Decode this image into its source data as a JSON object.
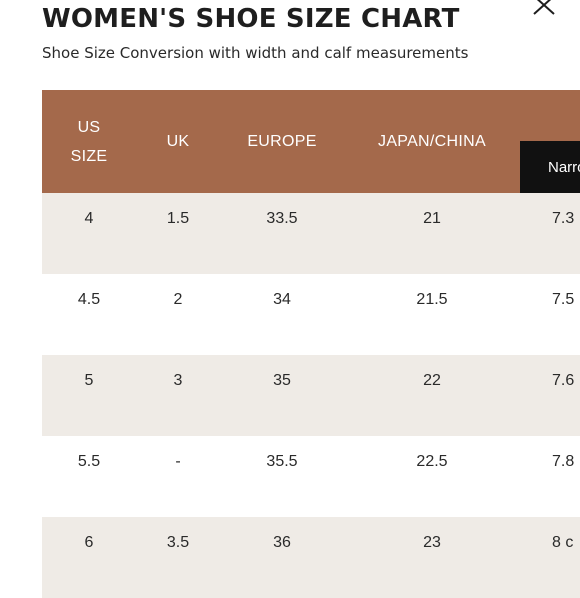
{
  "header": {
    "title": "WOMEN'S SHOE SIZE CHART",
    "subtitle": "Shoe Size Conversion with width and calf measurements"
  },
  "colors": {
    "header_bg": "#a4694b",
    "row_shade": "#efebe6",
    "tab_active": "#111111"
  },
  "icons": {
    "close": "close-icon"
  },
  "table": {
    "columns": [
      {
        "line1": "US",
        "line2": "SIZE"
      },
      {
        "line1": "UK"
      },
      {
        "line1": "EUROPE"
      },
      {
        "line1": "JAPAN/CHINA"
      }
    ],
    "width_tab_label": "Narrow",
    "rows": [
      {
        "us": "4",
        "uk": "1.5",
        "eu": "33.5",
        "jp": "21",
        "narrow": "7.3"
      },
      {
        "us": "4.5",
        "uk": "2",
        "eu": "34",
        "jp": "21.5",
        "narrow": "7.5"
      },
      {
        "us": "5",
        "uk": "3",
        "eu": "35",
        "jp": "22",
        "narrow": "7.6"
      },
      {
        "us": "5.5",
        "uk": "-",
        "eu": "35.5",
        "jp": "22.5",
        "narrow": "7.8"
      },
      {
        "us": "6",
        "uk": "3.5",
        "eu": "36",
        "jp": "23",
        "narrow": "8 c"
      }
    ]
  }
}
